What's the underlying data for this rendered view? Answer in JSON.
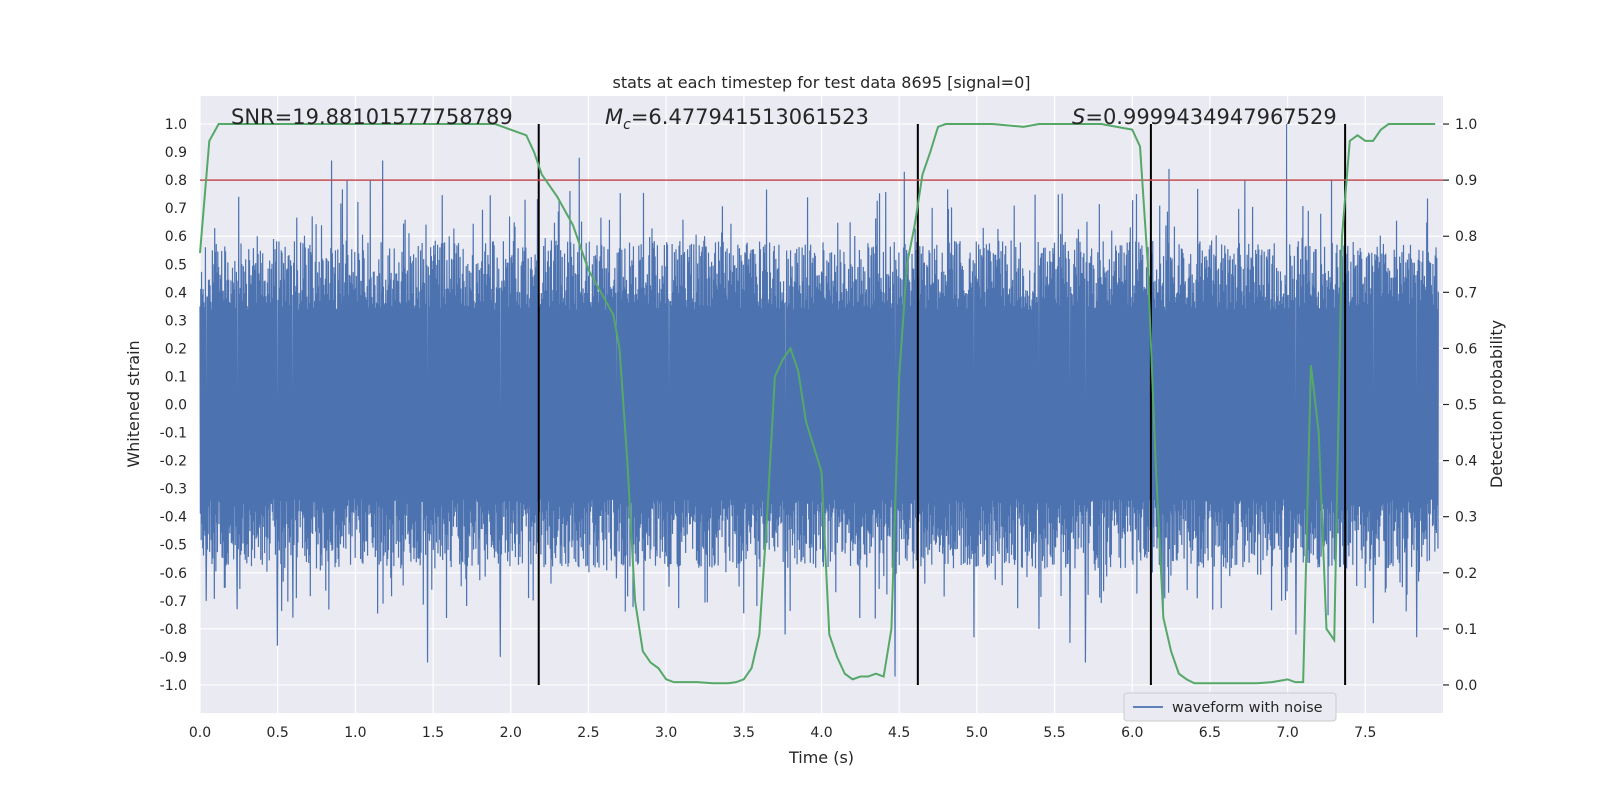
{
  "chart_data": {
    "type": "line",
    "title": "stats at each timestep for test data 8695 [signal=0]",
    "xlabel": "Time (s)",
    "ylabel": "Whitened strain",
    "y2label": "Detection probability",
    "xlim": [
      0.0,
      8.0
    ],
    "ylim": [
      -1.1,
      1.1
    ],
    "y2lim": [
      -0.05,
      1.05
    ],
    "xticks": [
      "0.0",
      "0.5",
      "1.0",
      "1.5",
      "2.0",
      "2.5",
      "3.0",
      "3.5",
      "4.0",
      "4.5",
      "5.0",
      "5.5",
      "6.0",
      "6.5",
      "7.0",
      "7.5"
    ],
    "yticks": [
      "1.0",
      "0.9",
      "0.8",
      "0.7",
      "0.6",
      "0.5",
      "0.4",
      "0.3",
      "0.2",
      "0.1",
      "0.0",
      "-0.1",
      "-0.2",
      "-0.3",
      "-0.4",
      "-0.5",
      "-0.6",
      "-0.7",
      "-0.8",
      "-0.9",
      "-1.0"
    ],
    "y2ticks": [
      "1.0",
      "0.9",
      "0.8",
      "0.7",
      "0.6",
      "0.5",
      "0.4",
      "0.3",
      "0.2",
      "0.1",
      "0.0"
    ],
    "grid": true,
    "legend_position": "bottom-right",
    "annotations": {
      "snr": "SNR=19.88101577758789",
      "mc_symbol": "M",
      "mc_subscript": "c",
      "mc_value": "=6.477941513061523",
      "s_symbol": "S",
      "s_value": "=0.9999434947967529"
    },
    "series": [
      {
        "name": "waveform with noise",
        "color": "#4c72b0",
        "description": "whitened strain noise trace",
        "envelope_typical": 0.45,
        "spikes": [
          [
            0.04,
            -0.7
          ],
          [
            0.09,
            0.5
          ],
          [
            0.24,
            -0.73
          ],
          [
            0.37,
            0.6
          ],
          [
            0.5,
            -0.86
          ],
          [
            0.6,
            -0.76
          ],
          [
            0.85,
            0.87
          ],
          [
            0.95,
            0.8
          ],
          [
            1.1,
            0.8
          ],
          [
            1.18,
            0.87
          ],
          [
            1.47,
            -0.92
          ],
          [
            1.61,
            0.6
          ],
          [
            1.94,
            -0.9
          ],
          [
            2.1,
            0.73
          ],
          [
            2.45,
            0.88
          ],
          [
            2.69,
            -0.62
          ],
          [
            3.03,
            -0.65
          ],
          [
            3.26,
            0.6
          ],
          [
            3.65,
            0.57
          ],
          [
            3.78,
            -0.82
          ],
          [
            4.2,
            0.65
          ],
          [
            4.49,
            -0.97
          ],
          [
            4.55,
            0.83
          ],
          [
            5.0,
            -0.83
          ],
          [
            5.42,
            -0.8
          ],
          [
            5.62,
            -0.85
          ],
          [
            5.72,
            -0.92
          ],
          [
            6.05,
            0.75
          ],
          [
            6.26,
            0.84
          ],
          [
            6.75,
            0.8
          ],
          [
            7.02,
            1.0
          ],
          [
            7.08,
            -0.82
          ],
          [
            7.31,
            0.8
          ],
          [
            7.58,
            -0.78
          ],
          [
            7.86,
            -0.83
          ]
        ]
      },
      {
        "name": "detection probability",
        "color": "#55a868",
        "x": [
          0.0,
          0.06,
          0.12,
          0.2,
          0.4,
          0.8,
          1.2,
          1.6,
          1.9,
          2.0,
          2.1,
          2.15,
          2.2,
          2.3,
          2.4,
          2.5,
          2.6,
          2.66,
          2.7,
          2.75,
          2.8,
          2.85,
          2.9,
          2.95,
          3.0,
          3.05,
          3.1,
          3.2,
          3.3,
          3.4,
          3.45,
          3.5,
          3.55,
          3.6,
          3.65,
          3.7,
          3.75,
          3.8,
          3.85,
          3.9,
          4.0,
          4.05,
          4.1,
          4.15,
          4.2,
          4.25,
          4.3,
          4.35,
          4.4,
          4.45,
          4.5,
          4.55,
          4.6,
          4.65,
          4.7,
          4.75,
          4.8,
          4.85,
          4.9,
          5.1,
          5.3,
          5.4,
          5.6,
          5.8,
          6.0,
          6.05,
          6.1,
          6.15,
          6.2,
          6.25,
          6.3,
          6.35,
          6.4,
          6.45,
          6.5,
          6.6,
          6.8,
          6.9,
          7.0,
          7.05,
          7.1,
          7.15,
          7.2,
          7.25,
          7.3,
          7.35,
          7.4,
          7.45,
          7.5,
          7.55,
          7.6,
          7.65,
          7.7,
          7.8,
          7.95
        ],
        "values": [
          0.77,
          0.97,
          1.0,
          1.0,
          1.0,
          1.0,
          1.0,
          1.0,
          1.0,
          0.99,
          0.98,
          0.95,
          0.91,
          0.87,
          0.82,
          0.74,
          0.69,
          0.66,
          0.6,
          0.4,
          0.15,
          0.06,
          0.04,
          0.03,
          0.01,
          0.005,
          0.005,
          0.005,
          0.003,
          0.003,
          0.005,
          0.01,
          0.03,
          0.09,
          0.3,
          0.55,
          0.58,
          0.6,
          0.56,
          0.47,
          0.38,
          0.09,
          0.05,
          0.02,
          0.01,
          0.015,
          0.015,
          0.02,
          0.015,
          0.1,
          0.55,
          0.75,
          0.82,
          0.91,
          0.95,
          0.995,
          1.0,
          1.0,
          1.0,
          1.0,
          0.995,
          1.0,
          1.0,
          1.0,
          0.99,
          0.96,
          0.75,
          0.4,
          0.12,
          0.06,
          0.02,
          0.01,
          0.003,
          0.003,
          0.003,
          0.003,
          0.003,
          0.005,
          0.01,
          0.005,
          0.005,
          0.57,
          0.45,
          0.1,
          0.08,
          0.8,
          0.97,
          0.98,
          0.97,
          0.97,
          0.99,
          1.0,
          1.0,
          1.0,
          1.0
        ]
      }
    ],
    "threshold": {
      "value": 0.9,
      "color": "#c44e52",
      "axis": "right"
    },
    "markers": [
      2.18,
      4.62,
      6.12,
      7.37
    ]
  }
}
